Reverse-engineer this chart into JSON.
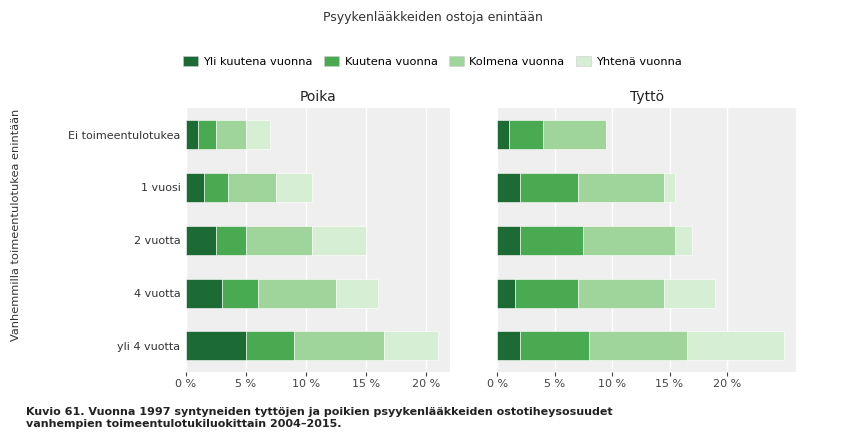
{
  "title_legend": "Psyykenlääkkeiden ostoja enintään",
  "ylabel": "Vanhemmilla toimeentulotukea enintään",
  "categories": [
    "Ei toimeentulotukea",
    "1 vuosi",
    "2 vuotta",
    "4 vuotta",
    "yli 4 vuotta"
  ],
  "categories_display": [
    "Ei toimeentulotukea",
    "1 vuosi",
    "2 vuotta",
    "4 vuotta",
    "yli 4 vuotta"
  ],
  "colors": {
    "yli_6": "#1d6b34",
    "6": "#4aaa52",
    "3": "#9fd49a",
    "1": "#d6efd4"
  },
  "legend_labels": [
    "Yli kuutena vuonna",
    "Kuutena vuonna",
    "Kolmena vuonna",
    "Yhtenä vuonna"
  ],
  "poika": {
    "title": "Poika",
    "yli_6": [
      1.0,
      1.5,
      2.5,
      3.0,
      5.0
    ],
    "6": [
      1.5,
      2.0,
      2.5,
      3.0,
      4.0
    ],
    "3": [
      2.5,
      4.0,
      5.5,
      6.5,
      7.5
    ],
    "1": [
      2.0,
      3.0,
      4.5,
      3.5,
      4.5
    ]
  },
  "tytto": {
    "title": "Tyttö",
    "yli_6": [
      1.0,
      2.0,
      2.0,
      1.5,
      2.0
    ],
    "6": [
      3.0,
      5.0,
      5.5,
      5.5,
      6.0
    ],
    "3": [
      5.5,
      7.5,
      8.0,
      7.5,
      8.5
    ],
    "1": [
      0.0,
      1.0,
      1.5,
      4.5,
      8.5
    ]
  },
  "xlim_poika": 22,
  "xlim_tytto": 26,
  "xticks_poika": [
    0,
    5,
    10,
    15,
    20
  ],
  "xticks_tytto": [
    0,
    5,
    10,
    15,
    20
  ],
  "plot_bg": "#efefef",
  "fig_bg": "#ffffff",
  "caption": "Kuvio 61. Vuonna 1997 syntyneiden tyttöjen ja poikien psyykenlääkkeiden ostotiheysosuudet\nvanhempien toimeentulotukiluokittain 2004–2015."
}
